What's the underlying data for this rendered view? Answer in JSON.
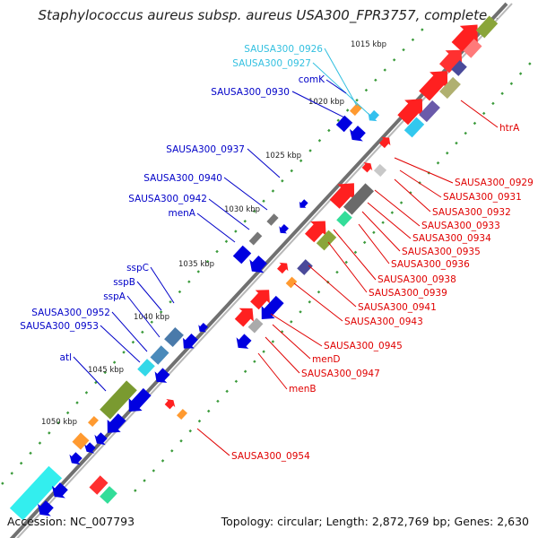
{
  "title": "Staphylococcus aureus subsp. aureus USA300_FPR3757, complete...",
  "accession": "Accession: NC_007793",
  "topology": "Topology: circular; Length: 2,872,769 bp; Genes: 2,630",
  "colors": {
    "forward_label": "#0000c8",
    "reverse_label": "#e00000",
    "hypothetical_label": "#33c0e0",
    "backbone": "#7a7a7a",
    "tick": "#3a9a3a"
  },
  "kbp_ticks": [
    "1015 kbp",
    "1020 kbp",
    "1025 kbp",
    "1030 kbp",
    "1035 kbp",
    "1040 kbp",
    "1045 kbp",
    "1050 kbp"
  ],
  "forward_labels": [
    {
      "text": "SAUSA300_0926",
      "kind": "hypothetical"
    },
    {
      "text": "SAUSA300_0927",
      "kind": "hypothetical"
    },
    {
      "text": "comK",
      "kind": "named"
    },
    {
      "text": "SAUSA300_0930",
      "kind": "named"
    },
    {
      "text": "SAUSA300_0937",
      "kind": "named"
    },
    {
      "text": "SAUSA300_0940",
      "kind": "named"
    },
    {
      "text": "SAUSA300_0942",
      "kind": "named"
    },
    {
      "text": "menA",
      "kind": "named"
    },
    {
      "text": "sspC",
      "kind": "named"
    },
    {
      "text": "sspB",
      "kind": "named"
    },
    {
      "text": "sspA",
      "kind": "named"
    },
    {
      "text": "SAUSA300_0952",
      "kind": "named"
    },
    {
      "text": "SAUSA300_0953",
      "kind": "named"
    },
    {
      "text": "atl",
      "kind": "named"
    }
  ],
  "reverse_labels": [
    {
      "text": "htrA"
    },
    {
      "text": "SAUSA300_0929"
    },
    {
      "text": "SAUSA300_0931"
    },
    {
      "text": "SAUSA300_0932"
    },
    {
      "text": "SAUSA300_0933"
    },
    {
      "text": "SAUSA300_0934"
    },
    {
      "text": "SAUSA300_0935"
    },
    {
      "text": "SAUSA300_0936"
    },
    {
      "text": "SAUSA300_0938"
    },
    {
      "text": "SAUSA300_0939"
    },
    {
      "text": "SAUSA300_0941"
    },
    {
      "text": "SAUSA300_0943"
    },
    {
      "text": "SAUSA300_0945"
    },
    {
      "text": "menD"
    },
    {
      "text": "SAUSA300_0947"
    },
    {
      "text": "menB"
    },
    {
      "text": "SAUSA300_0954"
    }
  ]
}
